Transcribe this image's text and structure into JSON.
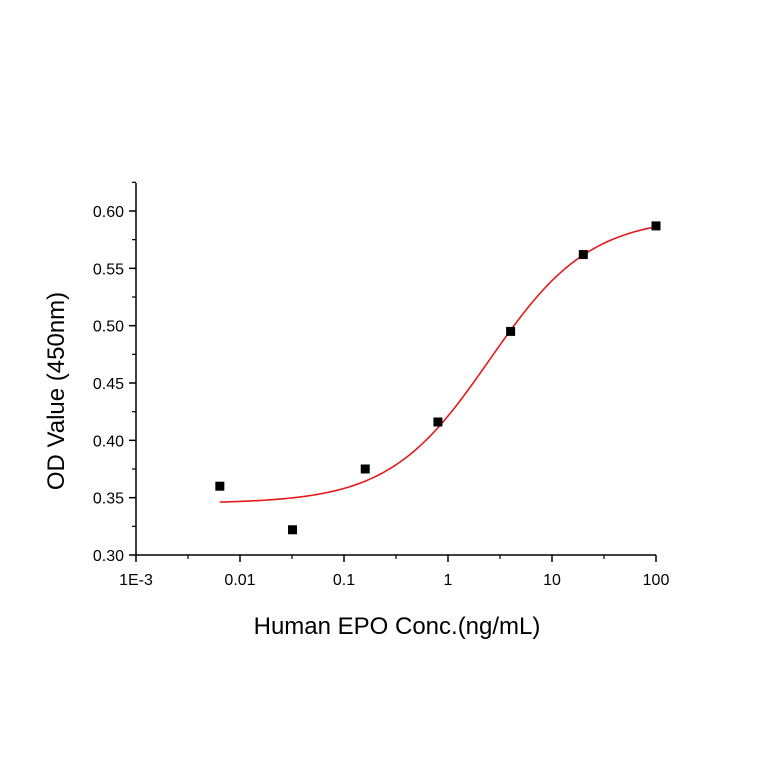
{
  "chart_data": {
    "type": "scatter",
    "title": "",
    "xlabel": "Human EPO Conc.(ng/mL)",
    "ylabel": "OD Value (450nm)",
    "x_scale": "log",
    "xlim": [
      0.001,
      100
    ],
    "ylim": [
      0.3,
      0.625
    ],
    "x_ticks": [
      {
        "value": 0.001,
        "label": "1E-3"
      },
      {
        "value": 0.01,
        "label": "0.01"
      },
      {
        "value": 0.1,
        "label": "0.1"
      },
      {
        "value": 1,
        "label": "1"
      },
      {
        "value": 10,
        "label": "10"
      },
      {
        "value": 100,
        "label": "100"
      }
    ],
    "y_ticks": [
      {
        "value": 0.3,
        "label": "0.30"
      },
      {
        "value": 0.35,
        "label": "0.35"
      },
      {
        "value": 0.4,
        "label": "0.40"
      },
      {
        "value": 0.45,
        "label": "0.45"
      },
      {
        "value": 0.5,
        "label": "0.50"
      },
      {
        "value": 0.55,
        "label": "0.55"
      },
      {
        "value": 0.6,
        "label": "0.60"
      }
    ],
    "series": [
      {
        "type": "scatter",
        "marker": "square",
        "color": "#000000",
        "x": [
          0.0064,
          0.032,
          0.16,
          0.8,
          4.0,
          20,
          100
        ],
        "y": [
          0.36,
          0.322,
          0.375,
          0.416,
          0.495,
          0.562,
          0.587
        ]
      },
      {
        "type": "line",
        "fit": "four-parameter logistic",
        "color": "#e31a1c",
        "x_range": [
          0.0064,
          100
        ],
        "params": {
          "bottom": 0.345,
          "top": 0.595,
          "ec50": 2.5,
          "hill": 0.9
        }
      }
    ],
    "grid": false,
    "legend": "none"
  }
}
